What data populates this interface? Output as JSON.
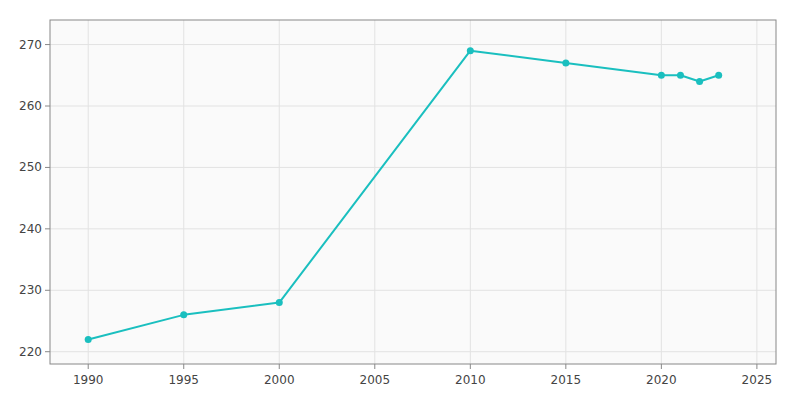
{
  "chart_data": {
    "type": "line",
    "x": [
      1990,
      1995,
      2000,
      2010,
      2015,
      2020,
      2021,
      2022,
      2023
    ],
    "values": [
      222,
      226,
      228,
      269,
      267,
      265,
      265,
      264,
      265
    ],
    "color": "#1abfbf",
    "marker": "circle",
    "xlim": [
      1988,
      2026
    ],
    "ylim": [
      218,
      274
    ],
    "xticks": [
      1990,
      1995,
      2000,
      2005,
      2010,
      2015,
      2020,
      2025
    ],
    "yticks": [
      220,
      230,
      240,
      250,
      260,
      270
    ],
    "grid": true
  }
}
